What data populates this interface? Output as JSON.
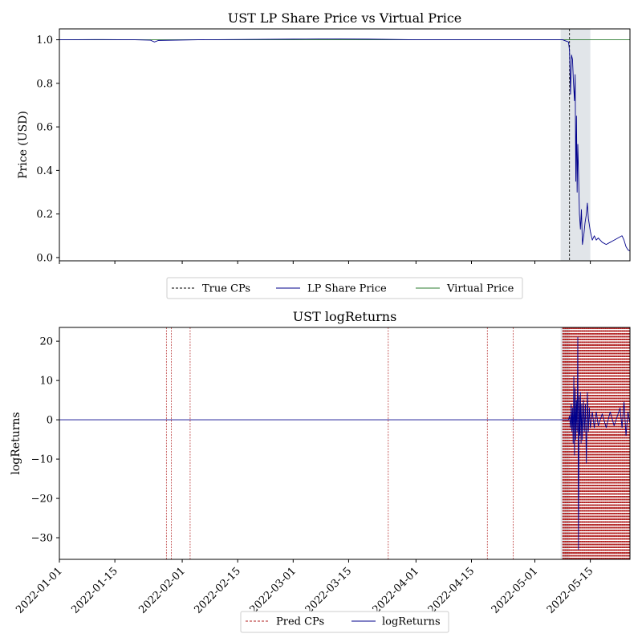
{
  "chart_data": [
    {
      "type": "line",
      "title": "UST LP Share Price vs Virtual Price",
      "xlabel": "",
      "ylabel": "Price (USD)",
      "x_range": [
        "2022-01-01",
        "2022-05-25"
      ],
      "ylim": [
        -0.015,
        1.05
      ],
      "yticks": [
        "0.0",
        "0.2",
        "0.4",
        "0.6",
        "0.8",
        "1.0"
      ],
      "shaded_window": [
        "2022-05-07 12:00",
        "2022-05-15"
      ],
      "grid": false,
      "legend_placement": "below plot",
      "legend": [
        {
          "label": "True CPs",
          "style": "dashed",
          "color": "#000000"
        },
        {
          "label": "LP Share Price",
          "style": "solid",
          "color": "#00008b"
        },
        {
          "label": "Virtual Price",
          "style": "solid",
          "color": "#2e7d32"
        }
      ],
      "true_cps": [
        "2022-05-09 18:00"
      ],
      "series": [
        {
          "name": "LP Share Price",
          "color": "#00008b",
          "points": [
            [
              "2022-01-01",
              1.0
            ],
            [
              "2022-01-10",
              1.001
            ],
            [
              "2022-01-20",
              1.0
            ],
            [
              "2022-01-24",
              0.998
            ],
            [
              "2022-01-25",
              0.99
            ],
            [
              "2022-01-26",
              0.997
            ],
            [
              "2022-02-05",
              1.0
            ],
            [
              "2022-02-20",
              1.002
            ],
            [
              "2022-03-01",
              1.003
            ],
            [
              "2022-03-10",
              1.004
            ],
            [
              "2022-03-20",
              1.003
            ],
            [
              "2022-04-01",
              1.0
            ],
            [
              "2022-04-15",
              1.0
            ],
            [
              "2022-05-01",
              1.0
            ],
            [
              "2022-05-08",
              1.0
            ],
            [
              "2022-05-09 12:00",
              0.99
            ],
            [
              "2022-05-09 18:00",
              0.95
            ],
            [
              "2022-05-10",
              0.75
            ],
            [
              "2022-05-10 06:00",
              0.93
            ],
            [
              "2022-05-10 12:00",
              0.91
            ],
            [
              "2022-05-10 18:00",
              0.8
            ],
            [
              "2022-05-11",
              0.72
            ],
            [
              "2022-05-11 04:00",
              0.84
            ],
            [
              "2022-05-11 08:00",
              0.35
            ],
            [
              "2022-05-11 12:00",
              0.65
            ],
            [
              "2022-05-11 16:00",
              0.3
            ],
            [
              "2022-05-11 20:00",
              0.52
            ],
            [
              "2022-05-12",
              0.4
            ],
            [
              "2022-05-12 06:00",
              0.2
            ],
            [
              "2022-05-12 12:00",
              0.13
            ],
            [
              "2022-05-12 18:00",
              0.22
            ],
            [
              "2022-05-13",
              0.06
            ],
            [
              "2022-05-13 08:00",
              0.1
            ],
            [
              "2022-05-13 16:00",
              0.16
            ],
            [
              "2022-05-14",
              0.2
            ],
            [
              "2022-05-14 06:00",
              0.25
            ],
            [
              "2022-05-14 12:00",
              0.18
            ],
            [
              "2022-05-14 18:00",
              0.15
            ],
            [
              "2022-05-15",
              0.12
            ],
            [
              "2022-05-15 12:00",
              0.08
            ],
            [
              "2022-05-16",
              0.1
            ],
            [
              "2022-05-16 12:00",
              0.08
            ],
            [
              "2022-05-17",
              0.09
            ],
            [
              "2022-05-18",
              0.07
            ],
            [
              "2022-05-19",
              0.06
            ],
            [
              "2022-05-20",
              0.07
            ],
            [
              "2022-05-21",
              0.08
            ],
            [
              "2022-05-22",
              0.09
            ],
            [
              "2022-05-23",
              0.1
            ],
            [
              "2022-05-23 12:00",
              0.08
            ],
            [
              "2022-05-24",
              0.05
            ],
            [
              "2022-05-24 12:00",
              0.035
            ],
            [
              "2022-05-25",
              0.03
            ]
          ]
        },
        {
          "name": "Virtual Price",
          "color": "#2e7d32",
          "points": [
            [
              "2022-01-01",
              1.0
            ],
            [
              "2022-05-25",
              1.0
            ]
          ]
        }
      ]
    },
    {
      "type": "line",
      "title": "UST logReturns",
      "xlabel": "",
      "ylabel": "logReturns",
      "x_range": [
        "2022-01-01",
        "2022-05-25"
      ],
      "xticks": [
        "2022-01-01",
        "2022-01-15",
        "2022-02-01",
        "2022-02-15",
        "2022-03-01",
        "2022-03-15",
        "2022-04-01",
        "2022-04-15",
        "2022-05-01",
        "2022-05-15"
      ],
      "ylim": [
        -35.5,
        23.5
      ],
      "yticks": [
        "−30",
        "−20",
        "−10",
        "0",
        "10",
        "20"
      ],
      "shaded_window": [
        "2022-05-07 12:00",
        "2022-05-09 18:00"
      ],
      "grid": false,
      "legend_placement": "below plot",
      "legend": [
        {
          "label": "Pred CPs",
          "style": "dashed",
          "color": "#b22222"
        },
        {
          "label": "logReturns",
          "style": "solid",
          "color": "#00008b"
        }
      ],
      "pred_cps": [
        "2022-01-28",
        "2022-01-29 06:00",
        "2022-02-03",
        "2022-03-25",
        "2022-04-19",
        "2022-04-25 12:00"
      ],
      "pred_cps_dense_range": [
        "2022-05-08",
        "2022-05-25"
      ],
      "series": [
        {
          "name": "logReturns",
          "color": "#00008b",
          "points": [
            [
              "2022-01-01",
              0.0
            ],
            [
              "2022-05-09 12:00",
              0.0
            ],
            [
              "2022-05-09 18:00",
              1.0
            ],
            [
              "2022-05-10",
              -2.0
            ],
            [
              "2022-05-10 04:00",
              4.0
            ],
            [
              "2022-05-10 08:00",
              -3.0
            ],
            [
              "2022-05-10 12:00",
              3.0
            ],
            [
              "2022-05-10 16:00",
              -6.0
            ],
            [
              "2022-05-10 20:00",
              11.0
            ],
            [
              "2022-05-11",
              -9.0
            ],
            [
              "2022-05-11 04:00",
              8.0
            ],
            [
              "2022-05-11 08:00",
              -5.0
            ],
            [
              "2022-05-11 12:00",
              5.0
            ],
            [
              "2022-05-11 16:00",
              -3.0
            ],
            [
              "2022-05-11 20:00",
              21.0
            ],
            [
              "2022-05-12",
              -33.0
            ],
            [
              "2022-05-12 04:00",
              6.0
            ],
            [
              "2022-05-12 08:00",
              -4.0
            ],
            [
              "2022-05-12 12:00",
              7.0
            ],
            [
              "2022-05-12 16:00",
              -6.0
            ],
            [
              "2022-05-12 20:00",
              4.0
            ],
            [
              "2022-05-13",
              -5.0
            ],
            [
              "2022-05-13 06:00",
              5.0
            ],
            [
              "2022-05-13 12:00",
              -3.0
            ],
            [
              "2022-05-13 18:00",
              4.0
            ],
            [
              "2022-05-14",
              -11.0
            ],
            [
              "2022-05-14 06:00",
              7.0
            ],
            [
              "2022-05-14 12:00",
              -3.0
            ],
            [
              "2022-05-14 18:00",
              3.0
            ],
            [
              "2022-05-15",
              -2.0
            ],
            [
              "2022-05-15 12:00",
              2.0
            ],
            [
              "2022-05-16",
              -2.0
            ],
            [
              "2022-05-16 12:00",
              2.0
            ],
            [
              "2022-05-17",
              -1.5
            ],
            [
              "2022-05-18",
              1.5
            ],
            [
              "2022-05-19",
              -2.0
            ],
            [
              "2022-05-20",
              2.0
            ],
            [
              "2022-05-21",
              -1.5
            ],
            [
              "2022-05-22",
              1.5
            ],
            [
              "2022-05-22 12:00",
              3.0
            ],
            [
              "2022-05-23",
              -2.0
            ],
            [
              "2022-05-23 12:00",
              4.5
            ],
            [
              "2022-05-24",
              -4.0
            ],
            [
              "2022-05-24 12:00",
              2.0
            ],
            [
              "2022-05-25",
              -1.0
            ]
          ]
        }
      ]
    }
  ]
}
